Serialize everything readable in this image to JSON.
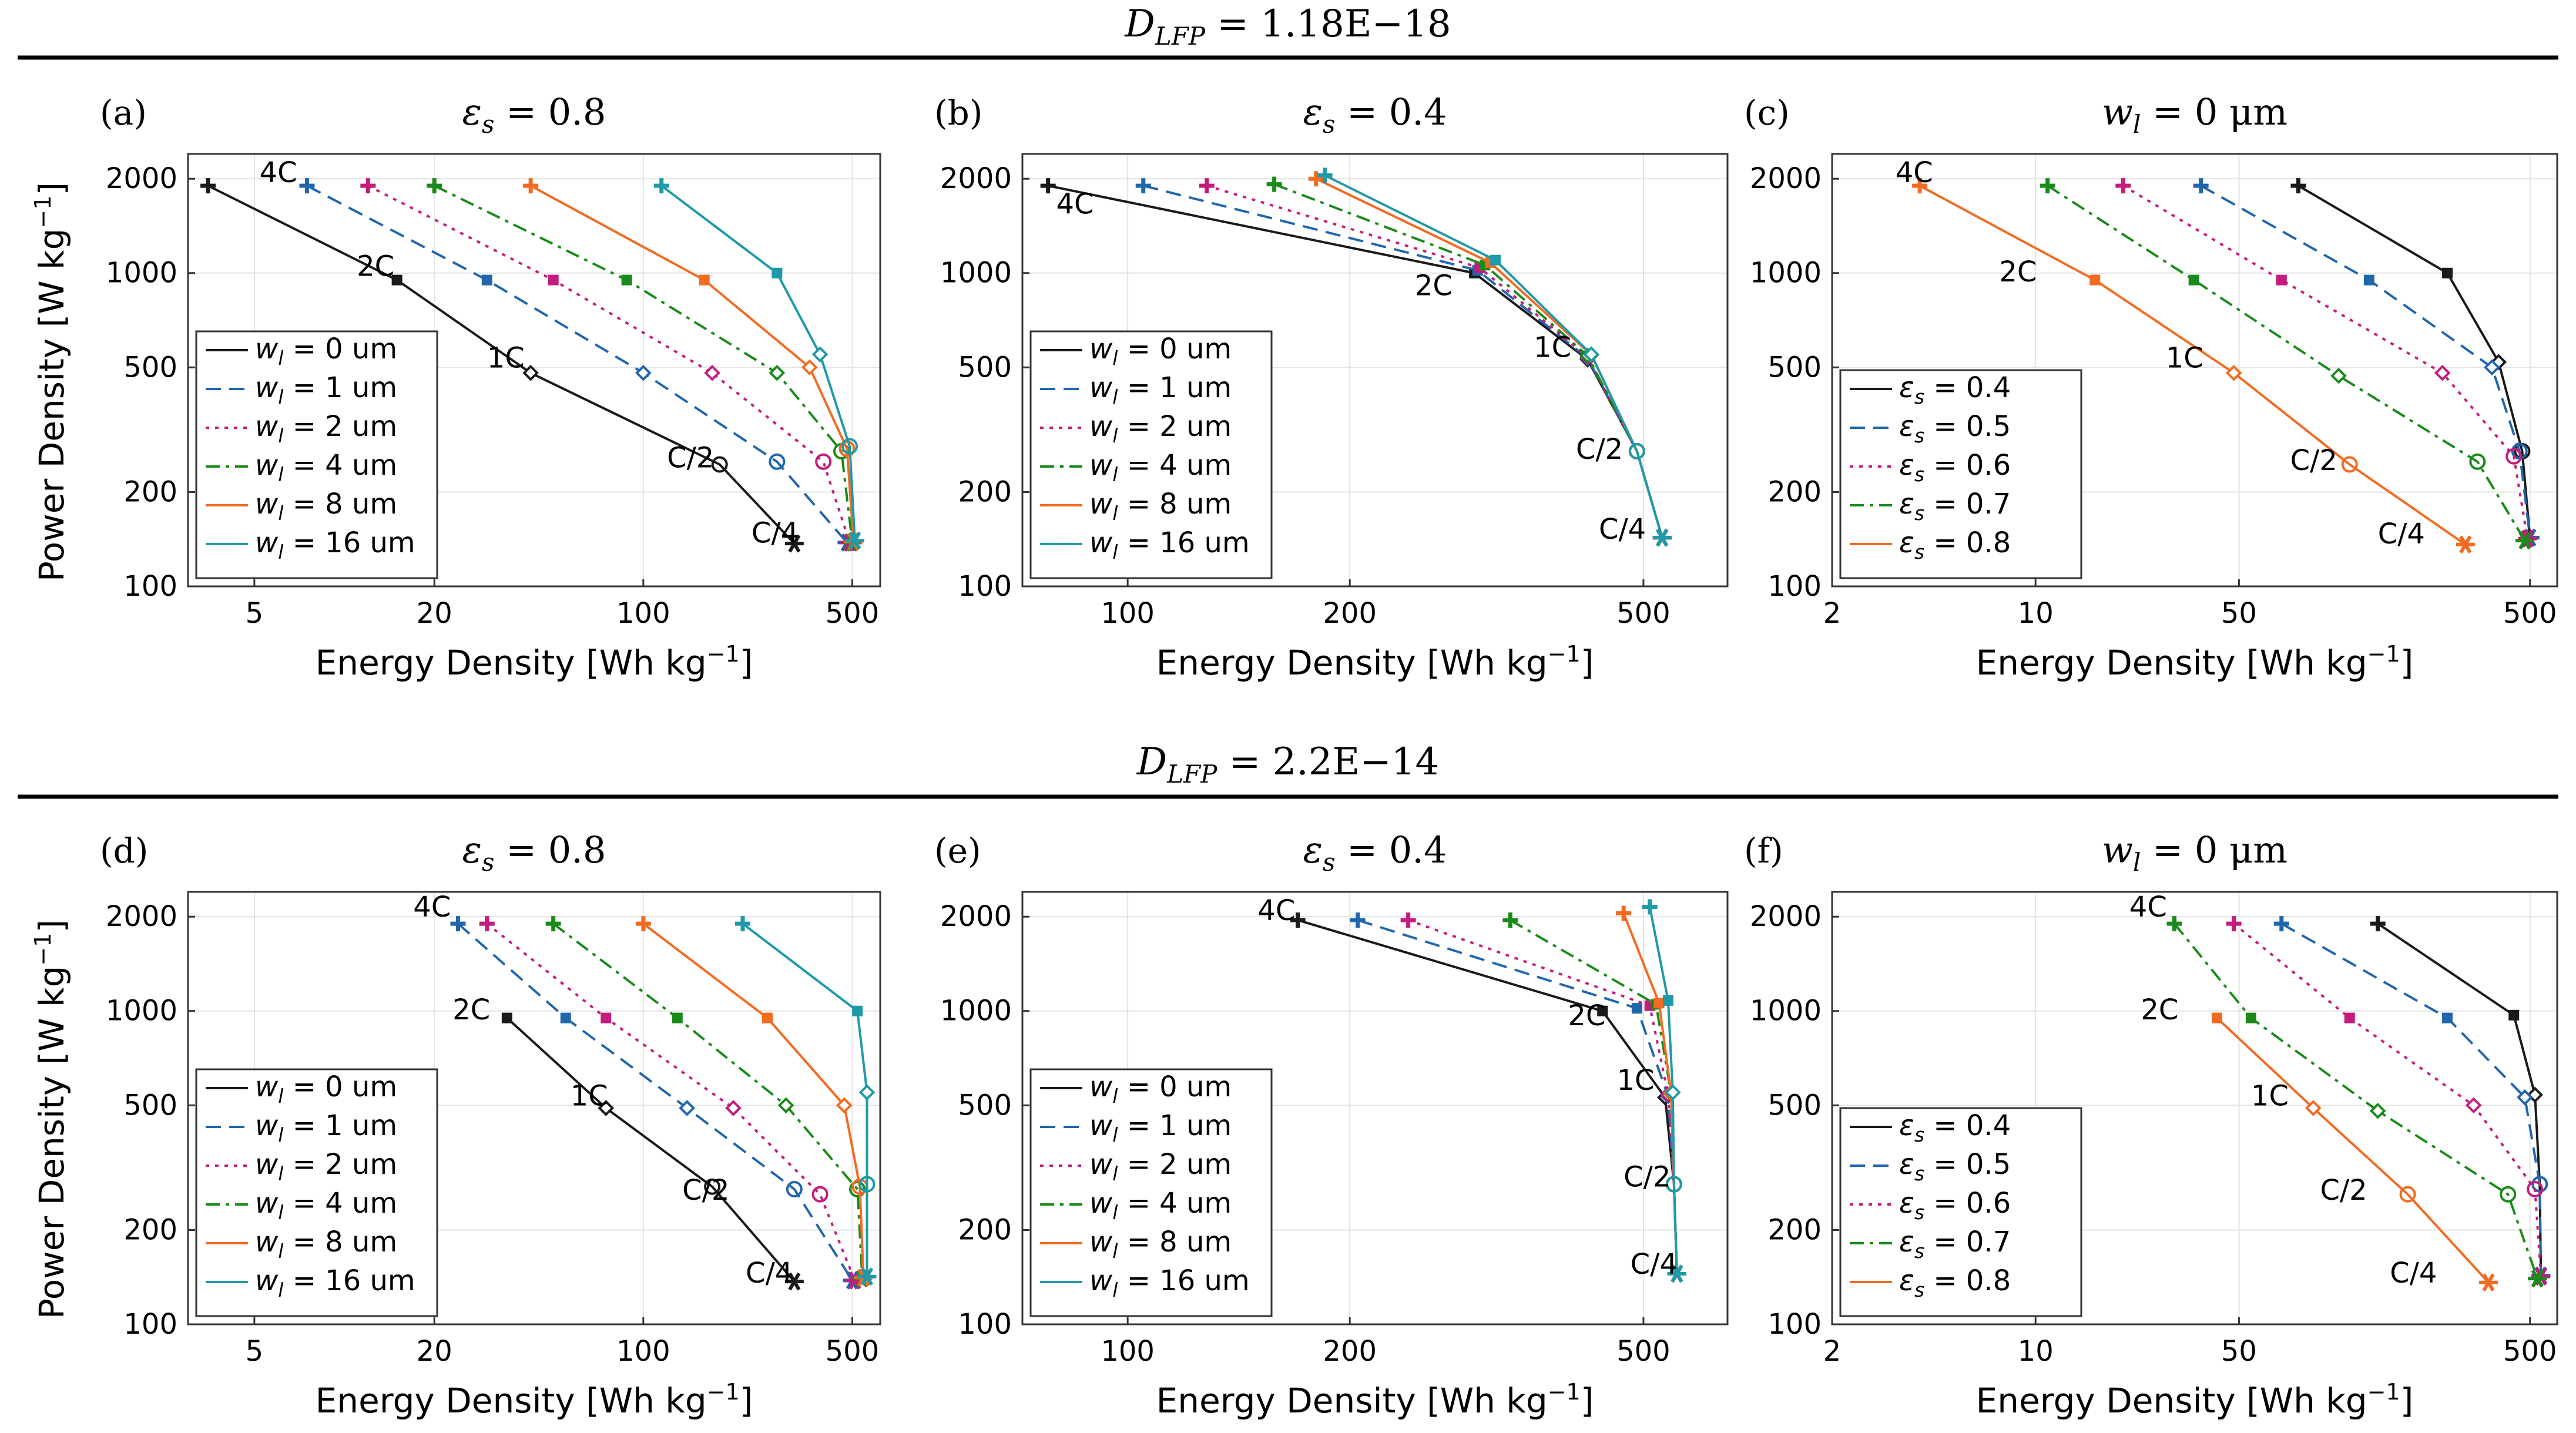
{
  "figure": {
    "top_heading": "D_LFP = 1.18E−18",
    "bottom_heading": "D_LFP = 2.2E−14",
    "top_heading_parts": {
      "sym": "D",
      "sub": "LFP",
      "rest": " = 1.18E−18"
    },
    "bottom_heading_parts": {
      "sym": "D",
      "sub": "LFP",
      "rest": " = 2.2E−14"
    },
    "ylabel": "Power Density  [W kg−1]",
    "xlabel": "Energy Density  [Wh kg−1]",
    "ylabel_text": "Power Density  [W kg",
    "xlabel_text": "Energy Density  [Wh kg",
    "unit_sup": "−1",
    "unit_close": "]"
  },
  "colors": [
    "#1a1a1a",
    "#2166ac",
    "#c51b7d",
    "#1a8a1a",
    "#f26b21",
    "#1f9aa8"
  ],
  "chart_data": [
    {
      "id": "a",
      "panel_label": "(a)",
      "title": "εs = 0.8",
      "type": "line",
      "xscale": "log",
      "yscale": "log",
      "xlim": [
        3,
        620
      ],
      "ylim": [
        100,
        2400
      ],
      "xticks": [
        5,
        20,
        100,
        500
      ],
      "yticks": [
        100,
        200,
        500,
        1000,
        2000
      ],
      "rate_labels": [
        {
          "text": "4C",
          "x": 5.2,
          "y": 1950
        },
        {
          "text": "2C",
          "x": 11,
          "y": 980
        },
        {
          "text": "1C",
          "x": 30,
          "y": 500
        },
        {
          "text": "C/2",
          "x": 120,
          "y": 240
        },
        {
          "text": "C/4",
          "x": 230,
          "y": 138
        }
      ],
      "legend": {
        "position": "left",
        "entries": [
          "wl = 0 um",
          "wl = 1 um",
          "wl = 2 um",
          "wl = 4 um",
          "wl = 8 um",
          "wl = 16 um"
        ]
      },
      "series": [
        {
          "name": "wl = 0 um",
          "x": [
            3.5,
            15,
            42,
            180,
            320
          ],
          "y": [
            1900,
            950,
            480,
            245,
            137
          ]
        },
        {
          "name": "wl = 1 um",
          "x": [
            7.5,
            30,
            100,
            280,
            480
          ],
          "y": [
            1900,
            950,
            480,
            250,
            138
          ]
        },
        {
          "name": "wl = 2 um",
          "x": [
            12,
            50,
            170,
            400,
            490
          ],
          "y": [
            1900,
            950,
            480,
            250,
            138
          ]
        },
        {
          "name": "wl = 4 um",
          "x": [
            20,
            88,
            280,
            460,
            500
          ],
          "y": [
            1900,
            950,
            480,
            270,
            138
          ]
        },
        {
          "name": "wl = 8 um",
          "x": [
            42,
            160,
            360,
            480,
            505
          ],
          "y": [
            1900,
            950,
            500,
            275,
            139
          ]
        },
        {
          "name": "wl = 16 um",
          "x": [
            115,
            280,
            390,
            490,
            510
          ],
          "y": [
            1900,
            1000,
            550,
            280,
            140
          ]
        }
      ]
    },
    {
      "id": "b",
      "panel_label": "(b)",
      "title": "εs = 0.4",
      "type": "line",
      "xscale": "log",
      "yscale": "log",
      "xlim": [
        72,
        650
      ],
      "ylim": [
        100,
        2400
      ],
      "xticks": [
        100,
        200,
        500
      ],
      "yticks": [
        100,
        200,
        500,
        1000,
        2000
      ],
      "rate_labels": [
        {
          "text": "4C",
          "x": 80,
          "y": 1550
        },
        {
          "text": "2C",
          "x": 245,
          "y": 850
        },
        {
          "text": "1C",
          "x": 355,
          "y": 540
        },
        {
          "text": "C/2",
          "x": 405,
          "y": 255
        },
        {
          "text": "C/4",
          "x": 435,
          "y": 142
        }
      ],
      "legend": {
        "position": "left",
        "entries": [
          "wl = 0 um",
          "wl = 1 um",
          "wl = 2 um",
          "wl = 4 um",
          "wl = 8 um",
          "wl = 16 um"
        ]
      },
      "series": [
        {
          "name": "wl = 0 um",
          "x": [
            78,
            295,
            420,
            490,
            530
          ],
          "y": [
            1900,
            1000,
            530,
            270,
            143
          ]
        },
        {
          "name": "wl = 1 um",
          "x": [
            105,
            298,
            420,
            490,
            530
          ],
          "y": [
            1900,
            1020,
            535,
            270,
            143
          ]
        },
        {
          "name": "wl = 2 um",
          "x": [
            128,
            300,
            420,
            490,
            530
          ],
          "y": [
            1900,
            1040,
            540,
            270,
            143
          ]
        },
        {
          "name": "wl = 4 um",
          "x": [
            158,
            305,
            420,
            490,
            530
          ],
          "y": [
            1920,
            1060,
            545,
            270,
            143
          ]
        },
        {
          "name": "wl = 8 um",
          "x": [
            180,
            310,
            425,
            490,
            530
          ],
          "y": [
            2000,
            1080,
            548,
            270,
            143
          ]
        },
        {
          "name": "wl = 16 um",
          "x": [
            185,
            315,
            425,
            490,
            530
          ],
          "y": [
            2050,
            1100,
            550,
            270,
            143
          ]
        }
      ]
    },
    {
      "id": "c",
      "panel_label": "(c)",
      "title": "wl = 0 μm",
      "type": "line",
      "xscale": "log",
      "yscale": "log",
      "xlim": [
        2,
        620
      ],
      "ylim": [
        100,
        2400
      ],
      "xticks": [
        2,
        10,
        50,
        500
      ],
      "yticks": [
        100,
        200,
        500,
        1000,
        2000
      ],
      "rate_labels": [
        {
          "text": "4C",
          "x": 3.3,
          "y": 1950
        },
        {
          "text": "2C",
          "x": 7.5,
          "y": 940
        },
        {
          "text": "1C",
          "x": 28,
          "y": 500
        },
        {
          "text": "C/2",
          "x": 75,
          "y": 235
        },
        {
          "text": "C/4",
          "x": 150,
          "y": 137
        }
      ],
      "legend": {
        "position": "left",
        "entries": [
          "εs = 0.4",
          "εs = 0.5",
          "εs = 0.6",
          "εs = 0.7",
          "εs = 0.8"
        ]
      },
      "series": [
        {
          "name": "εs = 0.4",
          "x": [
            80,
            260,
            390,
            470,
            500
          ],
          "y": [
            1900,
            1000,
            520,
            270,
            143
          ]
        },
        {
          "name": "εs = 0.5",
          "x": [
            37,
            140,
            370,
            460,
            500
          ],
          "y": [
            1900,
            950,
            500,
            270,
            143
          ]
        },
        {
          "name": "εs = 0.6",
          "x": [
            20,
            70,
            250,
            440,
            490
          ],
          "y": [
            1900,
            950,
            480,
            260,
            142
          ]
        },
        {
          "name": "εs = 0.7",
          "x": [
            11,
            35,
            110,
            330,
            480
          ],
          "y": [
            1900,
            950,
            470,
            250,
            140
          ]
        },
        {
          "name": "εs = 0.8",
          "x": [
            4,
            16,
            48,
            120,
            300
          ],
          "y": [
            1900,
            950,
            480,
            245,
            136
          ]
        }
      ]
    },
    {
      "id": "d",
      "panel_label": "(d)",
      "title": "εs = 0.8",
      "type": "line",
      "xscale": "log",
      "yscale": "log",
      "xlim": [
        3,
        620
      ],
      "ylim": [
        100,
        2400
      ],
      "xticks": [
        5,
        20,
        100,
        500
      ],
      "yticks": [
        100,
        200,
        500,
        1000,
        2000
      ],
      "rate_labels": [
        {
          "text": "4C",
          "x": 17,
          "y": 2000
        },
        {
          "text": "2C",
          "x": 23,
          "y": 940
        },
        {
          "text": "1C",
          "x": 57,
          "y": 500
        },
        {
          "text": "C/2",
          "x": 135,
          "y": 250
        },
        {
          "text": "C/4",
          "x": 220,
          "y": 136
        }
      ],
      "legend": {
        "position": "left",
        "entries": [
          "wl = 0 um",
          "wl = 1 um",
          "wl = 2 um",
          "wl = 4 um",
          "wl = 8 um",
          "wl = 16 um"
        ]
      },
      "series": [
        {
          "name": "wl = 0 um",
          "x": [
            35,
            75,
            170,
            320
          ],
          "y": [
            950,
            490,
            275,
            137
          ]
        },
        {
          "name": "wl = 1 um",
          "x": [
            24,
            55,
            140,
            320,
            500
          ],
          "y": [
            1900,
            950,
            490,
            270,
            138
          ]
        },
        {
          "name": "wl = 2 um",
          "x": [
            30,
            75,
            200,
            390,
            510
          ],
          "y": [
            1900,
            950,
            490,
            260,
            138
          ]
        },
        {
          "name": "wl = 4 um",
          "x": [
            50,
            130,
            300,
            520,
            540
          ],
          "y": [
            1900,
            950,
            500,
            270,
            140
          ]
        },
        {
          "name": "wl = 8 um",
          "x": [
            100,
            260,
            470,
            530,
            545
          ],
          "y": [
            1900,
            950,
            500,
            275,
            141
          ]
        },
        {
          "name": "wl = 16 um",
          "x": [
            215,
            520,
            560,
            560,
            560
          ],
          "y": [
            1900,
            1000,
            550,
            280,
            142
          ]
        }
      ]
    },
    {
      "id": "e",
      "panel_label": "(e)",
      "title": "εs = 0.4",
      "type": "line",
      "xscale": "log",
      "yscale": "log",
      "xlim": [
        72,
        650
      ],
      "ylim": [
        100,
        2400
      ],
      "xticks": [
        100,
        200,
        500
      ],
      "yticks": [
        100,
        200,
        500,
        1000,
        2000
      ],
      "rate_labels": [
        {
          "text": "4C",
          "x": 150,
          "y": 1950
        },
        {
          "text": "2C",
          "x": 395,
          "y": 900
        },
        {
          "text": "1C",
          "x": 460,
          "y": 560
        },
        {
          "text": "C/2",
          "x": 470,
          "y": 275
        },
        {
          "text": "C/4",
          "x": 480,
          "y": 145
        }
      ],
      "legend": {
        "position": "left",
        "entries": [
          "wl = 0 um",
          "wl = 1 um",
          "wl = 2 um",
          "wl = 4 um",
          "wl = 8 um",
          "wl = 16 um"
        ]
      },
      "series": [
        {
          "name": "wl = 0 um",
          "x": [
            170,
            440,
            535,
            550,
            555
          ],
          "y": [
            1950,
            1000,
            530,
            280,
            145
          ]
        },
        {
          "name": "wl = 1 um",
          "x": [
            205,
            490,
            540,
            550,
            555
          ],
          "y": [
            1950,
            1020,
            535,
            280,
            145
          ]
        },
        {
          "name": "wl = 2 um",
          "x": [
            240,
            510,
            540,
            550,
            555
          ],
          "y": [
            1950,
            1040,
            540,
            280,
            145
          ]
        },
        {
          "name": "wl = 4 um",
          "x": [
            330,
            520,
            545,
            550,
            555
          ],
          "y": [
            1950,
            1050,
            545,
            280,
            145
          ]
        },
        {
          "name": "wl = 8 um",
          "x": [
            470,
            525,
            545,
            550,
            555
          ],
          "y": [
            2050,
            1060,
            548,
            280,
            145
          ]
        },
        {
          "name": "wl = 16 um",
          "x": [
            510,
            540,
            548,
            550,
            555
          ],
          "y": [
            2150,
            1080,
            550,
            280,
            145
          ]
        }
      ]
    },
    {
      "id": "f",
      "panel_label": "(f)",
      "title": "wl = 0 μm",
      "type": "line",
      "xscale": "log",
      "yscale": "log",
      "xlim": [
        2,
        620
      ],
      "ylim": [
        100,
        2400
      ],
      "xticks": [
        2,
        10,
        50,
        500
      ],
      "yticks": [
        100,
        200,
        500,
        1000,
        2000
      ],
      "rate_labels": [
        {
          "text": "4C",
          "x": 21,
          "y": 2000
        },
        {
          "text": "2C",
          "x": 23,
          "y": 940
        },
        {
          "text": "1C",
          "x": 55,
          "y": 500
        },
        {
          "text": "C/2",
          "x": 95,
          "y": 250
        },
        {
          "text": "C/4",
          "x": 165,
          "y": 136
        }
      ],
      "legend": {
        "position": "left",
        "entries": [
          "εs = 0.4",
          "εs = 0.5",
          "εs = 0.6",
          "εs = 0.7",
          "εs = 0.8"
        ]
      },
      "series": [
        {
          "name": "εs = 0.4",
          "x": [
            150,
            440,
            520,
            540,
            545
          ],
          "y": [
            1900,
            970,
            540,
            280,
            143
          ]
        },
        {
          "name": "εs = 0.5",
          "x": [
            70,
            260,
            480,
            540,
            545
          ],
          "y": [
            1900,
            950,
            530,
            280,
            143
          ]
        },
        {
          "name": "εs = 0.6",
          "x": [
            48,
            120,
            320,
            520,
            545
          ],
          "y": [
            1900,
            950,
            500,
            270,
            142
          ]
        },
        {
          "name": "εs = 0.7",
          "x": [
            30,
            55,
            150,
            420,
            530
          ],
          "y": [
            1900,
            950,
            480,
            260,
            140
          ]
        },
        {
          "name": "εs = 0.8",
          "x": [
            42,
            90,
            190,
            360
          ],
          "y": [
            950,
            490,
            260,
            136
          ]
        }
      ]
    }
  ]
}
